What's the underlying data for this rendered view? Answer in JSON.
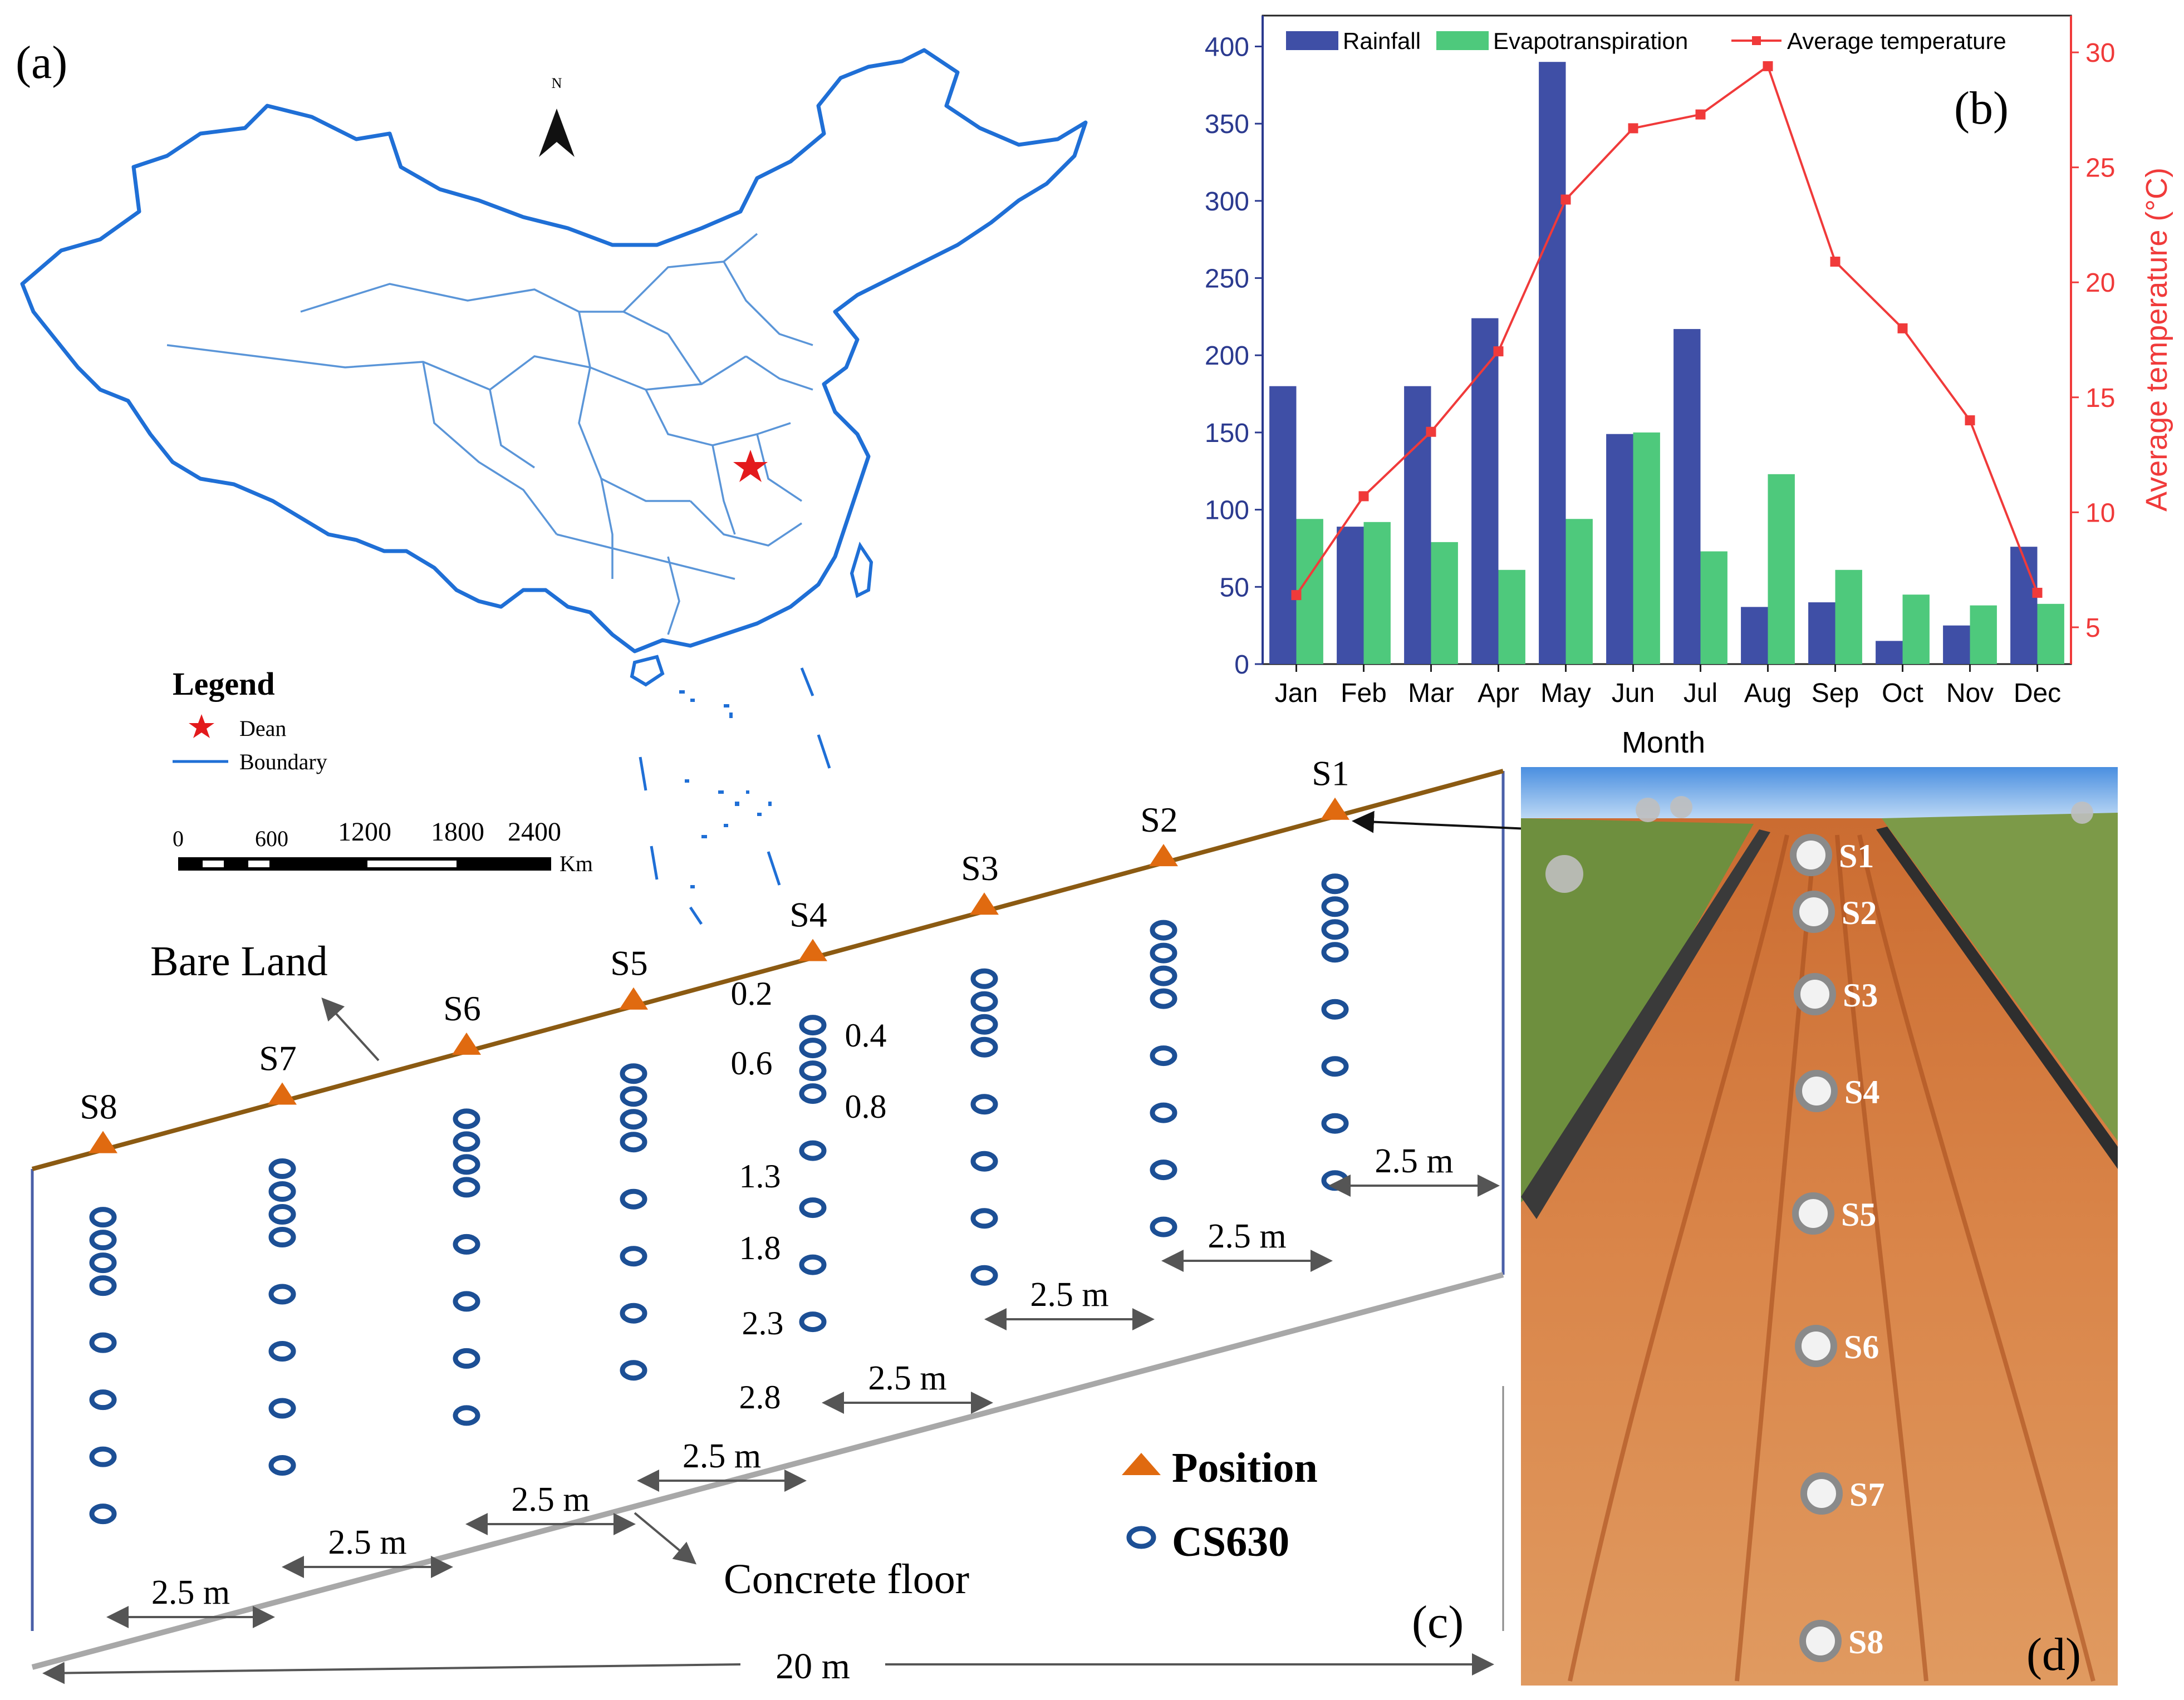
{
  "colors": {
    "rainfall": "#3f4fa6",
    "evapotranspiration": "#4ec97c",
    "temperature": "#f03a3a",
    "boundary": "#1f6fd6",
    "slope_line": "#8b5a12",
    "floor_line": "#a8a8a8",
    "position_marker": "#e06a10",
    "sensor": "#1c4f95",
    "frame_blue": "#4a5fa8"
  },
  "panel_a": {
    "label": "(a)",
    "north": "N",
    "legend_title": "Legend",
    "legend_items": [
      {
        "label": "Dean",
        "icon": "red-star-icon"
      },
      {
        "label": "Boundary",
        "icon": "blue-line-icon"
      }
    ],
    "scale_ticks": [
      "0",
      "600",
      "1200",
      "1800",
      "2400"
    ],
    "scale_unit": "Km"
  },
  "panel_b": {
    "label": "(b)",
    "xlabel": "Month",
    "ylabel_right": "Average temperature (°C)"
  },
  "chart_data": {
    "type": "bar",
    "categories": [
      "Jan",
      "Feb",
      "Mar",
      "Apr",
      "May",
      "Jun",
      "Jul",
      "Aug",
      "Sep",
      "Oct",
      "Nov",
      "Dec"
    ],
    "series": [
      {
        "name": "Rainfall",
        "type": "bar",
        "axis": "left",
        "values": [
          180,
          89,
          180,
          224,
          390,
          149,
          217,
          37,
          40,
          15,
          25,
          76
        ]
      },
      {
        "name": "Evapotranspiration",
        "type": "bar",
        "axis": "left",
        "values": [
          94,
          92,
          79,
          61,
          94,
          150,
          73,
          123,
          61,
          45,
          38,
          39
        ]
      },
      {
        "name": "Average temperature",
        "type": "line",
        "axis": "right",
        "values": [
          6.4,
          10.7,
          13.5,
          17.0,
          23.6,
          26.7,
          27.3,
          29.4,
          20.9,
          18.0,
          14.0,
          6.5
        ]
      }
    ],
    "title": "",
    "xlabel": "Month",
    "ylabel_left": "",
    "ylabel_right": "Average temperature (°C)",
    "ylim_left": [
      0,
      420
    ],
    "ylim_right": [
      3.4,
      31.6
    ],
    "yticks_left": [
      "0",
      "50",
      "100",
      "150",
      "200",
      "250",
      "300",
      "350",
      "400"
    ],
    "yticks_right": [
      "5",
      "10",
      "15",
      "20",
      "25",
      "30"
    ],
    "legend": "top-inside",
    "grid": false
  },
  "panel_c": {
    "label": "(c)",
    "stations": [
      "S1",
      "S2",
      "S3",
      "S4",
      "S5",
      "S6",
      "S7",
      "S8"
    ],
    "depths_left": [
      "0.2",
      "0.6",
      "1.3",
      "1.8",
      "2.3",
      "2.8"
    ],
    "depths_right": [
      "0.4",
      "0.8"
    ],
    "spacing": "2.5 m",
    "total_length": "20 m",
    "bare_land": "Bare Land",
    "concrete_floor": "Concrete floor",
    "legend_position": "Position",
    "legend_sensor": "CS630"
  },
  "panel_d": {
    "label": "(d)",
    "stations": [
      "S1",
      "S2",
      "S3",
      "S4",
      "S5",
      "S6",
      "S7",
      "S8"
    ]
  }
}
